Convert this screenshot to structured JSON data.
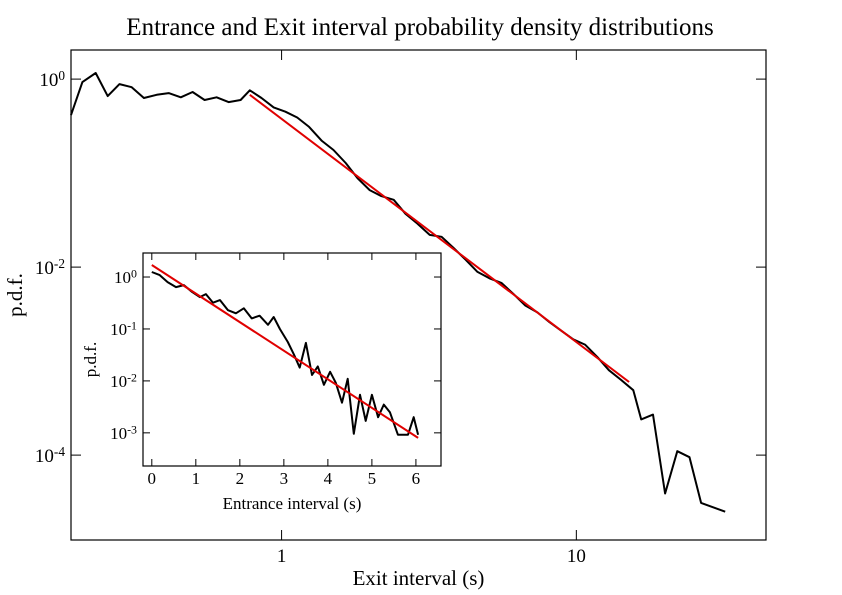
{
  "chart_data": [
    {
      "type": "line",
      "title": "Entrance and Exit interval probability density distributions",
      "x_label": "Exit interval (s)",
      "y_label": "p.d.f.",
      "xscale": "log",
      "yscale": "log",
      "xlim": [
        0.193,
        44
      ],
      "ylim": [
        1.25e-05,
        2.04
      ],
      "xticks": [
        1,
        10
      ],
      "yticks": [
        {
          "value": 1,
          "label": "10^0"
        },
        {
          "value": 0.01,
          "label": "10^-2"
        },
        {
          "value": 0.0001,
          "label": "10^-4"
        }
      ],
      "series": [
        {
          "color": "#000000",
          "x": [
            0.193,
            0.211,
            0.234,
            0.257,
            0.282,
            0.31,
            0.341,
            0.377,
            0.414,
            0.455,
            0.499,
            0.548,
            0.602,
            0.661,
            0.726,
            0.78,
            0.855,
            0.94,
            1.03,
            1.13,
            1.24,
            1.37,
            1.5,
            1.65,
            1.81,
            1.99,
            2.18,
            2.4,
            2.63,
            2.89,
            3.18,
            3.49,
            3.83,
            4.21,
            4.62,
            5.07,
            5.57,
            6.11,
            6.71,
            7.38,
            8.1,
            8.9,
            9.77,
            10.7,
            11.8,
            12.9,
            14.2,
            15.6,
            16.6,
            18.2,
            20.0,
            22.0,
            24.2,
            26.5,
            32.0
          ],
          "values": [
            0.414,
            0.93,
            1.16,
            0.66,
            0.885,
            0.82,
            0.63,
            0.68,
            0.71,
            0.64,
            0.73,
            0.6,
            0.64,
            0.57,
            0.6,
            0.76,
            0.63,
            0.5,
            0.45,
            0.39,
            0.31,
            0.22,
            0.176,
            0.128,
            0.0885,
            0.066,
            0.057,
            0.052,
            0.037,
            0.029,
            0.022,
            0.021,
            0.016,
            0.012,
            0.0089,
            0.0076,
            0.0068,
            0.0052,
            0.0039,
            0.0033,
            0.0026,
            0.0021,
            0.0017,
            0.0015,
            0.0011,
            0.0008,
            0.00063,
            0.00049,
            0.00024,
            0.00027,
            3.9e-05,
            0.00011,
            9.5e-05,
            3.1e-05,
            2.5e-05
          ]
        },
        {
          "color": "#e00000",
          "x": [
            0.78,
            15.1
          ],
          "values": [
            0.68,
            0.0006
          ]
        }
      ]
    },
    {
      "type": "line",
      "x_label": "Entrance interval (s)",
      "y_label": "p.d.f.",
      "xscale": "linear",
      "yscale": "log",
      "xlim": [
        -0.2,
        6.57
      ],
      "ylim": [
        0.00023,
        2.9
      ],
      "xticks": [
        0,
        1,
        2,
        3,
        4,
        5,
        6
      ],
      "yticks": [
        {
          "value": 1,
          "label": "10^0"
        },
        {
          "value": 0.1,
          "label": "10^-1"
        },
        {
          "value": 0.01,
          "label": "10^-2"
        },
        {
          "value": 0.001,
          "label": "10^-3"
        }
      ],
      "series": [
        {
          "color": "#000000",
          "x": [
            0,
            0.18,
            0.36,
            0.55,
            0.73,
            0.91,
            1.09,
            1.23,
            1.39,
            1.55,
            1.73,
            1.91,
            2.09,
            2.27,
            2.45,
            2.64,
            2.77,
            2.91,
            3.09,
            3.23,
            3.36,
            3.5,
            3.64,
            3.77,
            3.91,
            4.05,
            4.18,
            4.32,
            4.45,
            4.59,
            4.73,
            4.86,
            5.0,
            5.14,
            5.27,
            5.41,
            5.59,
            5.82,
            5.95,
            6.05
          ],
          "values": [
            1.25,
            1.09,
            0.8,
            0.64,
            0.7,
            0.52,
            0.41,
            0.47,
            0.32,
            0.36,
            0.23,
            0.2,
            0.25,
            0.16,
            0.18,
            0.12,
            0.17,
            0.1,
            0.056,
            0.032,
            0.018,
            0.054,
            0.013,
            0.019,
            0.0084,
            0.015,
            0.0092,
            0.0038,
            0.011,
            0.00096,
            0.0054,
            0.0017,
            0.0054,
            0.002,
            0.0035,
            0.0025,
            0.00092,
            0.00092,
            0.002,
            0.00092
          ]
        },
        {
          "color": "#e00000",
          "x": [
            0,
            6.05
          ],
          "values": [
            1.7,
            0.0008
          ]
        }
      ]
    }
  ]
}
